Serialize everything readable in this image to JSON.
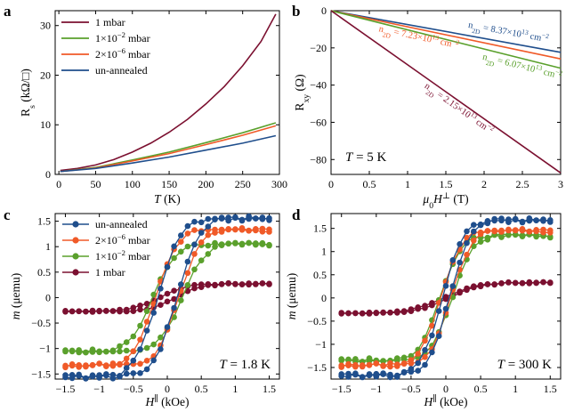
{
  "chart_data": [
    {
      "panel": "a",
      "type": "line",
      "xlabel_italic": "T",
      "xlabel_unit": " (K)",
      "ylabel_main": "R",
      "ylabel_sub": "s",
      "ylabel_unit": " (kΩ/□)",
      "xlim": [
        -5,
        300
      ],
      "ylim": [
        0,
        33
      ],
      "xticks": [
        0,
        50,
        100,
        150,
        200,
        250,
        300
      ],
      "yticks": [
        0,
        10,
        20,
        30
      ],
      "legend_loc": "top-left",
      "series": [
        {
          "name": "1 mbar",
          "color": "#7b1030",
          "x": [
            2,
            25,
            50,
            75,
            100,
            125,
            150,
            175,
            200,
            225,
            250,
            275,
            295
          ],
          "y": [
            0.8,
            1.2,
            1.9,
            3.0,
            4.5,
            6.3,
            8.5,
            11.1,
            14.2,
            17.7,
            21.9,
            26.8,
            32.3
          ]
        },
        {
          "name": "1×10^-2 mbar",
          "color": "#5aa02c",
          "x": [
            2,
            50,
            100,
            150,
            200,
            250,
            295
          ],
          "y": [
            0.6,
            1.4,
            2.9,
            4.5,
            6.4,
            8.4,
            10.4
          ]
        },
        {
          "name": "2×10^-6 mbar",
          "color": "#f05a28",
          "x": [
            2,
            50,
            100,
            150,
            200,
            250,
            295
          ],
          "y": [
            0.6,
            1.3,
            2.7,
            4.2,
            6.0,
            7.9,
            9.8
          ]
        },
        {
          "name": "un-annealed",
          "color": "#1f4e8c",
          "x": [
            2,
            50,
            100,
            150,
            200,
            250,
            295
          ],
          "y": [
            0.6,
            1.2,
            2.3,
            3.5,
            4.9,
            6.3,
            7.8
          ]
        }
      ]
    },
    {
      "panel": "b",
      "type": "line",
      "xlabel_pre": "μ",
      "xlabel_sub": "0",
      "xlabel_H": "H",
      "xlabel_sup": "⊥",
      "xlabel_unit": " (T)",
      "ylabel_main": "R",
      "ylabel_sub": "xy",
      "ylabel_unit": " (Ω)",
      "xlim": [
        0,
        3
      ],
      "ylim": [
        -88,
        0
      ],
      "xticks": [
        0,
        0.5,
        1,
        1.5,
        2,
        2.5,
        3
      ],
      "yticks": [
        0,
        -20,
        -40,
        -60,
        -80
      ],
      "annotation": "T = 5 K",
      "series": [
        {
          "name": "n2D = 8.37×10^13 cm^-2",
          "color": "#1f4e8c",
          "x": [
            0,
            3
          ],
          "y": [
            0,
            -22.4
          ]
        },
        {
          "name": "n2D = 7.23×10^13 cm^-2",
          "color": "#f05a28",
          "x": [
            0,
            3
          ],
          "y": [
            0,
            -25.9
          ]
        },
        {
          "name": "n2D = 6.07×10^13 cm^-2",
          "color": "#5aa02c",
          "x": [
            0,
            3
          ],
          "y": [
            0,
            -30.9
          ]
        },
        {
          "name": "n2D = 2.15×10^13 cm^-2",
          "color": "#7b1030",
          "x": [
            0,
            3
          ],
          "y": [
            0,
            -87.2
          ]
        }
      ]
    },
    {
      "panel": "c",
      "type": "scatter-line",
      "xlabel_H": "H",
      "xlabel_sup": "∥",
      "xlabel_unit": " (kOe)",
      "ylabel_italic": "m",
      "ylabel_unit": " (μemu)",
      "xlim": [
        -1.65,
        1.65
      ],
      "ylim": [
        -1.6,
        1.65
      ],
      "xticks": [
        -1.5,
        -1,
        -0.5,
        0,
        0.5,
        1,
        1.5
      ],
      "yticks": [
        -1.5,
        -1,
        -0.5,
        0,
        0.5,
        1,
        1.5
      ],
      "legend_loc": "top-left",
      "annotation": "T = 1.8 K",
      "series": [
        {
          "name": "un-annealed",
          "color": "#1f4e8c",
          "Ms": 1.55,
          "Hc": 0.14,
          "w": 0.38
        },
        {
          "name": "2×10^-6 mbar",
          "color": "#f05a28",
          "Ms": 1.33,
          "Hc": 0.17,
          "w": 0.37
        },
        {
          "name": "1×10^-2 mbar",
          "color": "#5aa02c",
          "Ms": 1.05,
          "Hc": 0.22,
          "w": 0.38
        },
        {
          "name": "1 mbar",
          "color": "#7b1030",
          "Ms": 0.27,
          "Hc": 0.12,
          "w": 0.45
        }
      ]
    },
    {
      "panel": "d",
      "type": "scatter-line",
      "xlabel_H": "H",
      "xlabel_sup": "∥",
      "xlabel_unit": " (kOe)",
      "ylabel_italic": "m",
      "ylabel_unit": " (μemu)",
      "xlim": [
        -1.65,
        1.65
      ],
      "ylim": [
        -1.75,
        1.82
      ],
      "xticks": [
        -1.5,
        -1,
        -0.5,
        0,
        0.5,
        1,
        1.5
      ],
      "yticks": [
        -1.5,
        -1,
        -0.5,
        0,
        0.5,
        1,
        1.5
      ],
      "annotation": "T = 300 K",
      "series": [
        {
          "name": "un-annealed",
          "color": "#1f4e8c",
          "Ms": 1.67,
          "Hc": 0.05,
          "w": 0.34
        },
        {
          "name": "2×10^-6 mbar",
          "color": "#f05a28",
          "Ms": 1.45,
          "Hc": 0.07,
          "w": 0.34
        },
        {
          "name": "1×10^-2 mbar",
          "color": "#5aa02c",
          "Ms": 1.34,
          "Hc": 0.09,
          "w": 0.34
        },
        {
          "name": "1 mbar",
          "color": "#7b1030",
          "Ms": 0.33,
          "Hc": 0.04,
          "w": 0.55
        }
      ]
    }
  ]
}
